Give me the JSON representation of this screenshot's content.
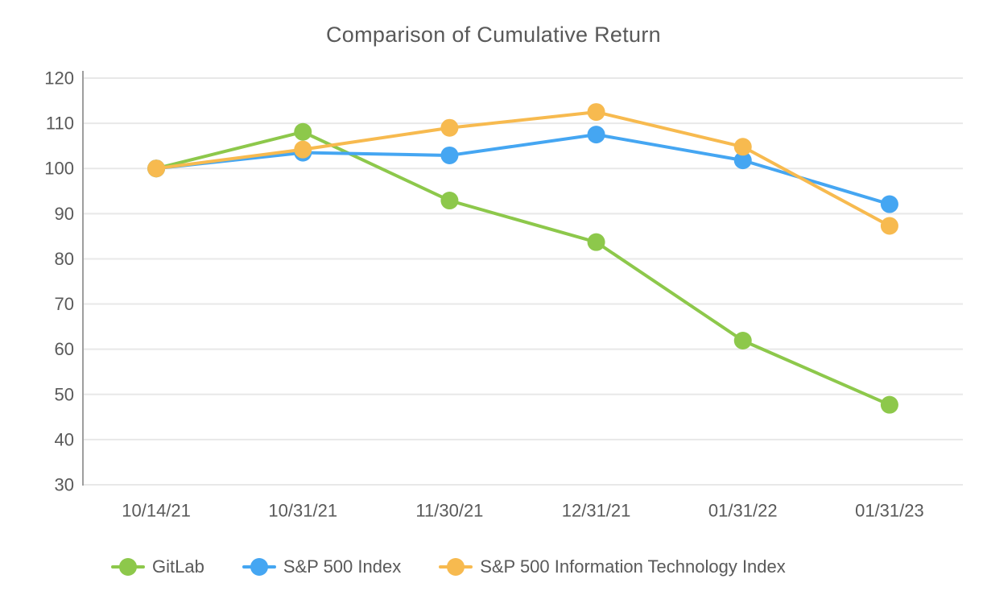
{
  "figure": {
    "title": "Comparison of Cumulative Return"
  },
  "chart_data": {
    "type": "line",
    "title": "Comparison of Cumulative Return",
    "xlabel": "",
    "ylabel": "",
    "categories": [
      "10/14/21",
      "10/31/21",
      "11/30/21",
      "12/31/21",
      "01/31/22",
      "01/31/23"
    ],
    "series": [
      {
        "name": "GitLab",
        "color": "#8DC84B",
        "values": [
          100,
          108.1,
          92.9,
          83.7,
          61.9,
          47.7
        ]
      },
      {
        "name": "S&P 500 Index",
        "color": "#45A6F2",
        "values": [
          100,
          103.5,
          102.9,
          107.5,
          101.8,
          92.1
        ]
      },
      {
        "name": "S&P 500 Information Technology Index",
        "color": "#F7BA4F",
        "values": [
          100,
          104.2,
          109.0,
          112.5,
          104.8,
          87.3
        ]
      }
    ],
    "ylim": [
      30,
      120
    ],
    "ytick_step": 10,
    "ytick_labels": [
      "30",
      "40",
      "50",
      "60",
      "70",
      "80",
      "90",
      "100",
      "110",
      "120"
    ],
    "grid": true,
    "legend_position": "bottom"
  },
  "colors": {
    "text": "#595959",
    "gridline": "#E8E8E8",
    "axis_line": "#9E9E9E",
    "background": "#FFFFFF"
  }
}
